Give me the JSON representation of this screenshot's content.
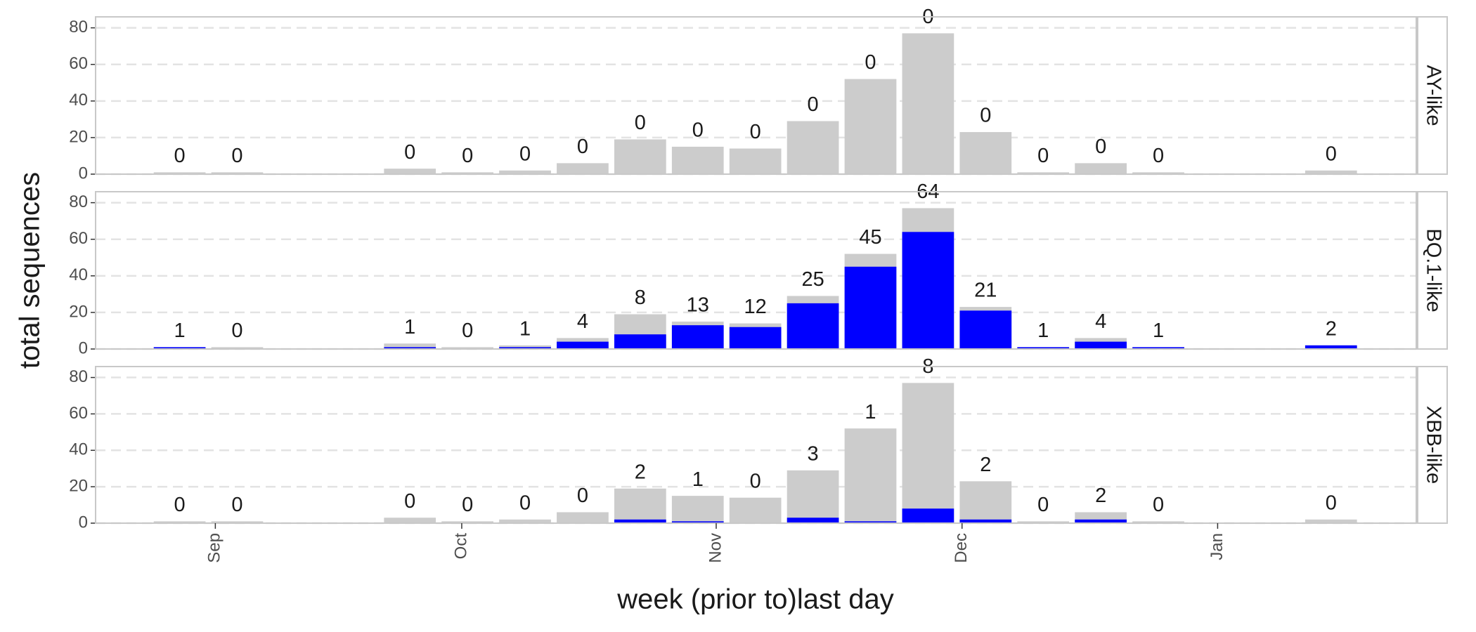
{
  "chart_data": {
    "type": "bar",
    "y_label": "total sequences",
    "x_label": "week (prior to)last day",
    "categories": [
      null,
      null,
      null,
      null,
      null,
      null,
      null,
      null,
      null,
      null,
      null,
      null,
      null,
      null,
      null,
      null,
      null,
      null,
      null,
      null,
      null
    ],
    "xlim": [
      -1.46,
      21.48
    ],
    "xticks": [
      {
        "value": 0.62,
        "label": "Sep"
      },
      {
        "value": 4.9,
        "label": "Oct"
      },
      {
        "value": 9.32,
        "label": "Nov"
      },
      {
        "value": 13.59,
        "label": "Dec"
      },
      {
        "value": 18.03,
        "label": "Jan"
      }
    ],
    "ylim": [
      0,
      86
    ],
    "yticks": [
      0,
      20,
      40,
      60,
      80
    ],
    "grid": true,
    "facets": [
      {
        "label": "AY-like",
        "series": [
          {
            "color": "#cccccc",
            "values": [
              1,
              1,
              null,
              null,
              3,
              1,
              2,
              6,
              19,
              15,
              14,
              29,
              52,
              77,
              23,
              1,
              6,
              1,
              null,
              null,
              2
            ]
          },
          {
            "color": "#0000ff",
            "values": [
              0,
              0,
              null,
              null,
              0,
              0,
              0,
              0,
              0,
              0,
              0,
              0,
              0,
              0,
              0,
              0,
              0,
              0,
              null,
              null,
              0
            ]
          }
        ]
      },
      {
        "label": "BQ.1-like",
        "series": [
          {
            "color": "#cccccc",
            "values": [
              1,
              1,
              null,
              null,
              3,
              1,
              2,
              6,
              19,
              15,
              14,
              29,
              52,
              77,
              23,
              1,
              6,
              1,
              null,
              null,
              2
            ]
          },
          {
            "color": "#0000ff",
            "values": [
              1,
              0,
              null,
              null,
              1,
              0,
              1,
              4,
              8,
              13,
              12,
              25,
              45,
              64,
              21,
              1,
              4,
              1,
              null,
              null,
              2
            ]
          }
        ]
      },
      {
        "label": "XBB-like",
        "series": [
          {
            "color": "#cccccc",
            "values": [
              1,
              1,
              null,
              null,
              3,
              1,
              2,
              6,
              19,
              15,
              14,
              29,
              52,
              77,
              23,
              1,
              6,
              1,
              null,
              null,
              2
            ]
          },
          {
            "color": "#0000ff",
            "values": [
              0,
              0,
              null,
              null,
              0,
              0,
              0,
              0,
              2,
              1,
              0,
              3,
              1,
              8,
              2,
              0,
              2,
              0,
              null,
              null,
              0
            ]
          }
        ]
      }
    ]
  }
}
